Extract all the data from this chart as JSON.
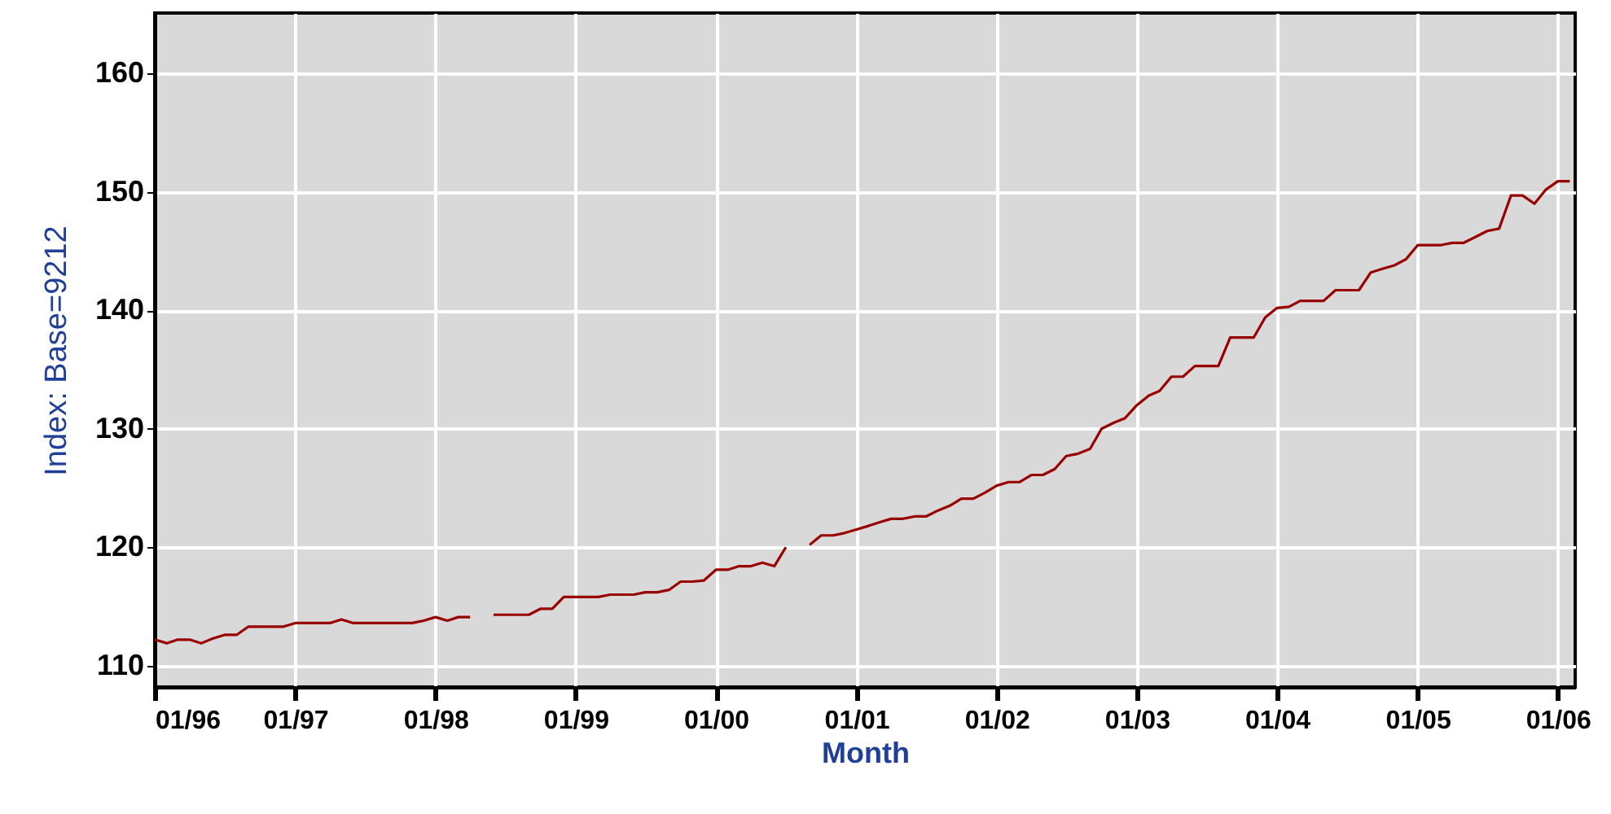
{
  "chart_data": {
    "type": "line",
    "xlabel": "Month",
    "ylabel": "Index: Base=9212",
    "x": [
      "1996-01",
      "1996-02",
      "1996-03",
      "1996-04",
      "1996-05",
      "1996-06",
      "1996-07",
      "1996-08",
      "1996-09",
      "1996-10",
      "1996-11",
      "1996-12",
      "1997-01",
      "1997-02",
      "1997-03",
      "1997-04",
      "1997-05",
      "1997-06",
      "1997-07",
      "1997-08",
      "1997-09",
      "1997-10",
      "1997-11",
      "1997-12",
      "1998-01",
      "1998-02",
      "1998-03",
      "1998-04",
      "1998-05",
      "1998-06",
      "1998-07",
      "1998-08",
      "1998-09",
      "1998-10",
      "1998-11",
      "1998-12",
      "1999-01",
      "1999-02",
      "1999-03",
      "1999-04",
      "1999-05",
      "1999-06",
      "1999-07",
      "1999-08",
      "1999-09",
      "1999-10",
      "1999-11",
      "1999-12",
      "2000-01",
      "2000-02",
      "2000-03",
      "2000-04",
      "2000-05",
      "2000-06",
      "2000-07",
      "2000-08",
      "2000-09",
      "2000-10",
      "2000-11",
      "2000-12",
      "2001-01",
      "2001-02",
      "2001-03",
      "2001-04",
      "2001-05",
      "2001-06",
      "2001-07",
      "2001-08",
      "2001-09",
      "2001-10",
      "2001-11",
      "2001-12",
      "2002-01",
      "2002-02",
      "2002-03",
      "2002-04",
      "2002-05",
      "2002-06",
      "2002-07",
      "2002-08",
      "2002-09",
      "2002-10",
      "2002-11",
      "2002-12",
      "2003-01",
      "2003-02",
      "2003-03",
      "2003-04",
      "2003-05",
      "2003-06",
      "2003-07",
      "2003-08",
      "2003-09",
      "2003-10",
      "2003-11",
      "2003-12",
      "2004-01",
      "2004-02",
      "2004-03",
      "2004-04",
      "2004-05",
      "2004-06",
      "2004-07",
      "2004-08",
      "2004-09",
      "2004-10",
      "2004-11",
      "2004-12",
      "2005-01",
      "2005-02",
      "2005-03",
      "2005-04",
      "2005-05",
      "2005-06",
      "2005-07",
      "2005-08",
      "2005-09",
      "2005-10",
      "2005-11",
      "2005-12",
      "2006-01",
      "2006-02"
    ],
    "series": [
      {
        "color": "#990000",
        "values": [
          112.2,
          111.9,
          112.2,
          112.2,
          111.9,
          112.3,
          112.6,
          112.6,
          113.3,
          113.3,
          113.3,
          113.3,
          113.6,
          113.6,
          113.6,
          113.6,
          113.9,
          113.6,
          113.6,
          113.6,
          113.6,
          113.6,
          113.6,
          113.8,
          114.1,
          113.8,
          114.1,
          114.1,
          null,
          114.3,
          114.3,
          114.3,
          114.3,
          114.8,
          114.8,
          115.8,
          115.8,
          115.8,
          115.8,
          116.0,
          116.0,
          116.0,
          116.2,
          116.2,
          116.4,
          117.1,
          117.1,
          117.2,
          118.1,
          118.1,
          118.4,
          118.4,
          118.7,
          118.4,
          120.0,
          null,
          120.2,
          121.0,
          121.0,
          121.2,
          121.5,
          121.8,
          122.1,
          122.4,
          122.4,
          122.6,
          122.6,
          123.1,
          123.5,
          124.1,
          124.1,
          124.6,
          125.2,
          125.5,
          125.5,
          126.1,
          126.1,
          126.6,
          127.7,
          127.9,
          128.3,
          130.0,
          130.5,
          130.9,
          132.0,
          132.8,
          133.2,
          134.4,
          134.4,
          135.3,
          135.3,
          135.3,
          137.7,
          137.7,
          137.7,
          139.4,
          140.2,
          140.3,
          140.8,
          140.8,
          140.8,
          141.7,
          141.7,
          141.7,
          143.2,
          143.5,
          143.8,
          144.3,
          145.5,
          145.5,
          145.5,
          145.7,
          145.7,
          146.2,
          146.7,
          146.9,
          149.7,
          149.7,
          149.0,
          150.2,
          150.9,
          150.9
        ]
      }
    ],
    "xlim": [
      "1996-01",
      "2006-02-15"
    ],
    "xticks": [
      {
        "value": "1996-01",
        "label": "01/96"
      },
      {
        "value": "1997-01",
        "label": "01/97"
      },
      {
        "value": "1998-01",
        "label": "01/98"
      },
      {
        "value": "1999-01",
        "label": "01/99"
      },
      {
        "value": "2000-01",
        "label": "01/00"
      },
      {
        "value": "2001-01",
        "label": "01/01"
      },
      {
        "value": "2002-01",
        "label": "01/02"
      },
      {
        "value": "2003-01",
        "label": "01/03"
      },
      {
        "value": "2004-01",
        "label": "01/04"
      },
      {
        "value": "2005-01",
        "label": "01/05"
      },
      {
        "value": "2006-01",
        "label": "01/06"
      }
    ],
    "ylim": [
      108.2,
      165.1
    ],
    "yticks": [
      110,
      120,
      130,
      140,
      150,
      160
    ],
    "grid": true,
    "marker": "none",
    "line_style": "solid"
  }
}
